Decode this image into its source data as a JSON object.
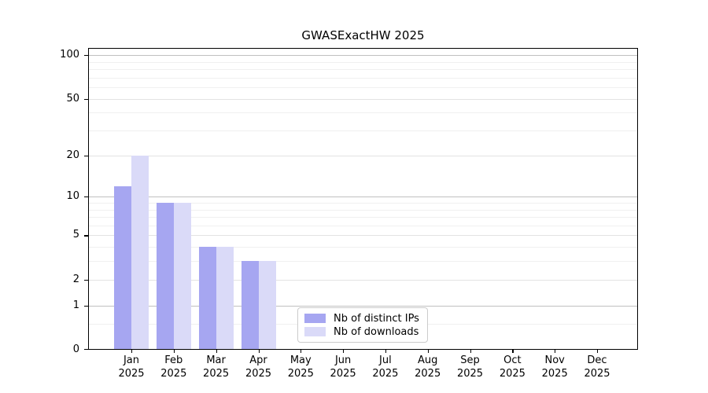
{
  "chart_data": {
    "type": "bar",
    "title": "GWASExactHW 2025",
    "categories": [
      "Jan 2025",
      "Feb 2025",
      "Mar 2025",
      "Apr 2025",
      "May 2025",
      "Jun 2025",
      "Jul 2025",
      "Aug 2025",
      "Sep 2025",
      "Oct 2025",
      "Nov 2025",
      "Dec 2025"
    ],
    "series": [
      {
        "name": "Nb of distinct IPs",
        "color": "#a6a6f1",
        "values": [
          12,
          9,
          4,
          3,
          0,
          0,
          0,
          0,
          0,
          0,
          0,
          0
        ]
      },
      {
        "name": "Nb of downloads",
        "color": "#dadaf8",
        "values": [
          20,
          9,
          4,
          3,
          0,
          0,
          0,
          0,
          0,
          0,
          0,
          0
        ]
      }
    ],
    "y_axis": {
      "scale": "log10(value+1)",
      "ticks": [
        0,
        1,
        2,
        5,
        10,
        20,
        50,
        100
      ],
      "major_gridline_values": [
        1,
        10,
        100
      ],
      "minor_gridlines": [
        0.5,
        3,
        4,
        6,
        7,
        8,
        9,
        30,
        40,
        60,
        70,
        80,
        90
      ],
      "range": [
        0,
        112
      ]
    },
    "legend_position": "lower center inside plot",
    "grid": true
  },
  "colors": {
    "bar_distinct_ips": "#a6a6f1",
    "bar_downloads": "#dadaf8",
    "grid_major": "#c0c0c0",
    "grid_mid": "#e3e3e3",
    "grid_minor": "#f0f0f0",
    "axis": "#000000",
    "background": "#ffffff",
    "legend_border": "#cccccc"
  }
}
